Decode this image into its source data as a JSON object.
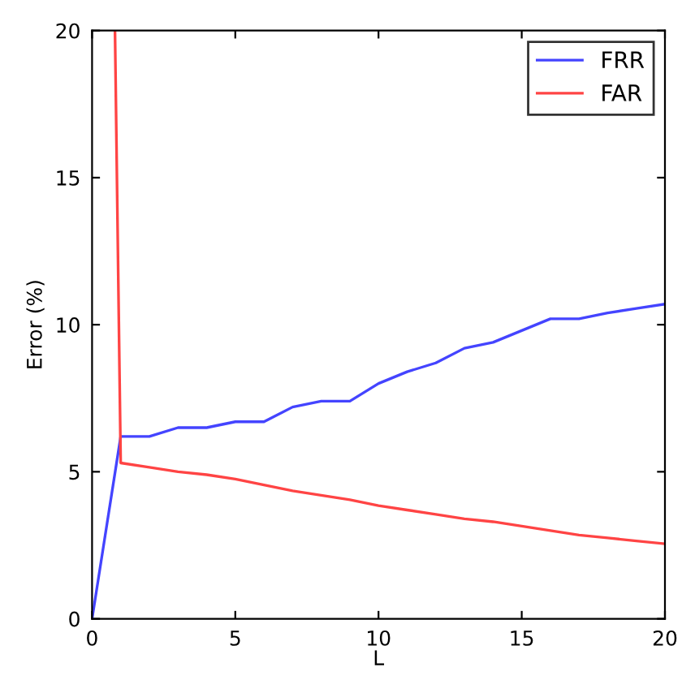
{
  "chart_data": {
    "type": "line",
    "xlabel": "L",
    "ylabel": "Error (%)",
    "xlim": [
      0,
      20
    ],
    "ylim": [
      0,
      20
    ],
    "xticks": [
      0,
      5,
      10,
      15,
      20
    ],
    "yticks": [
      0,
      5,
      10,
      15,
      20
    ],
    "grid": false,
    "legend": "top right",
    "line_style": "solid",
    "series": [
      {
        "name": "FRR",
        "color": "#4444ff",
        "x": [
          0,
          1,
          2,
          3,
          4,
          5,
          6,
          7,
          8,
          9,
          10,
          11,
          12,
          13,
          14,
          15,
          16,
          17,
          18,
          19,
          20
        ],
        "values": [
          0,
          6.2,
          6.2,
          6.5,
          6.5,
          6.7,
          6.7,
          7.2,
          7.4,
          7.4,
          8.0,
          8.4,
          8.7,
          9.2,
          9.4,
          9.8,
          10.2,
          10.2,
          10.4,
          10.55,
          10.7
        ]
      },
      {
        "name": "FAR",
        "color": "#ff4444",
        "x": [
          0.8,
          1,
          2,
          3,
          4,
          5,
          6,
          7,
          8,
          9,
          10,
          11,
          12,
          13,
          14,
          15,
          16,
          17,
          18,
          19,
          20
        ],
        "values": [
          20,
          5.3,
          5.15,
          5.0,
          4.9,
          4.75,
          4.55,
          4.35,
          4.2,
          4.05,
          3.85,
          3.7,
          3.55,
          3.4,
          3.3,
          3.15,
          3.0,
          2.85,
          2.75,
          2.65,
          2.55
        ]
      }
    ]
  }
}
